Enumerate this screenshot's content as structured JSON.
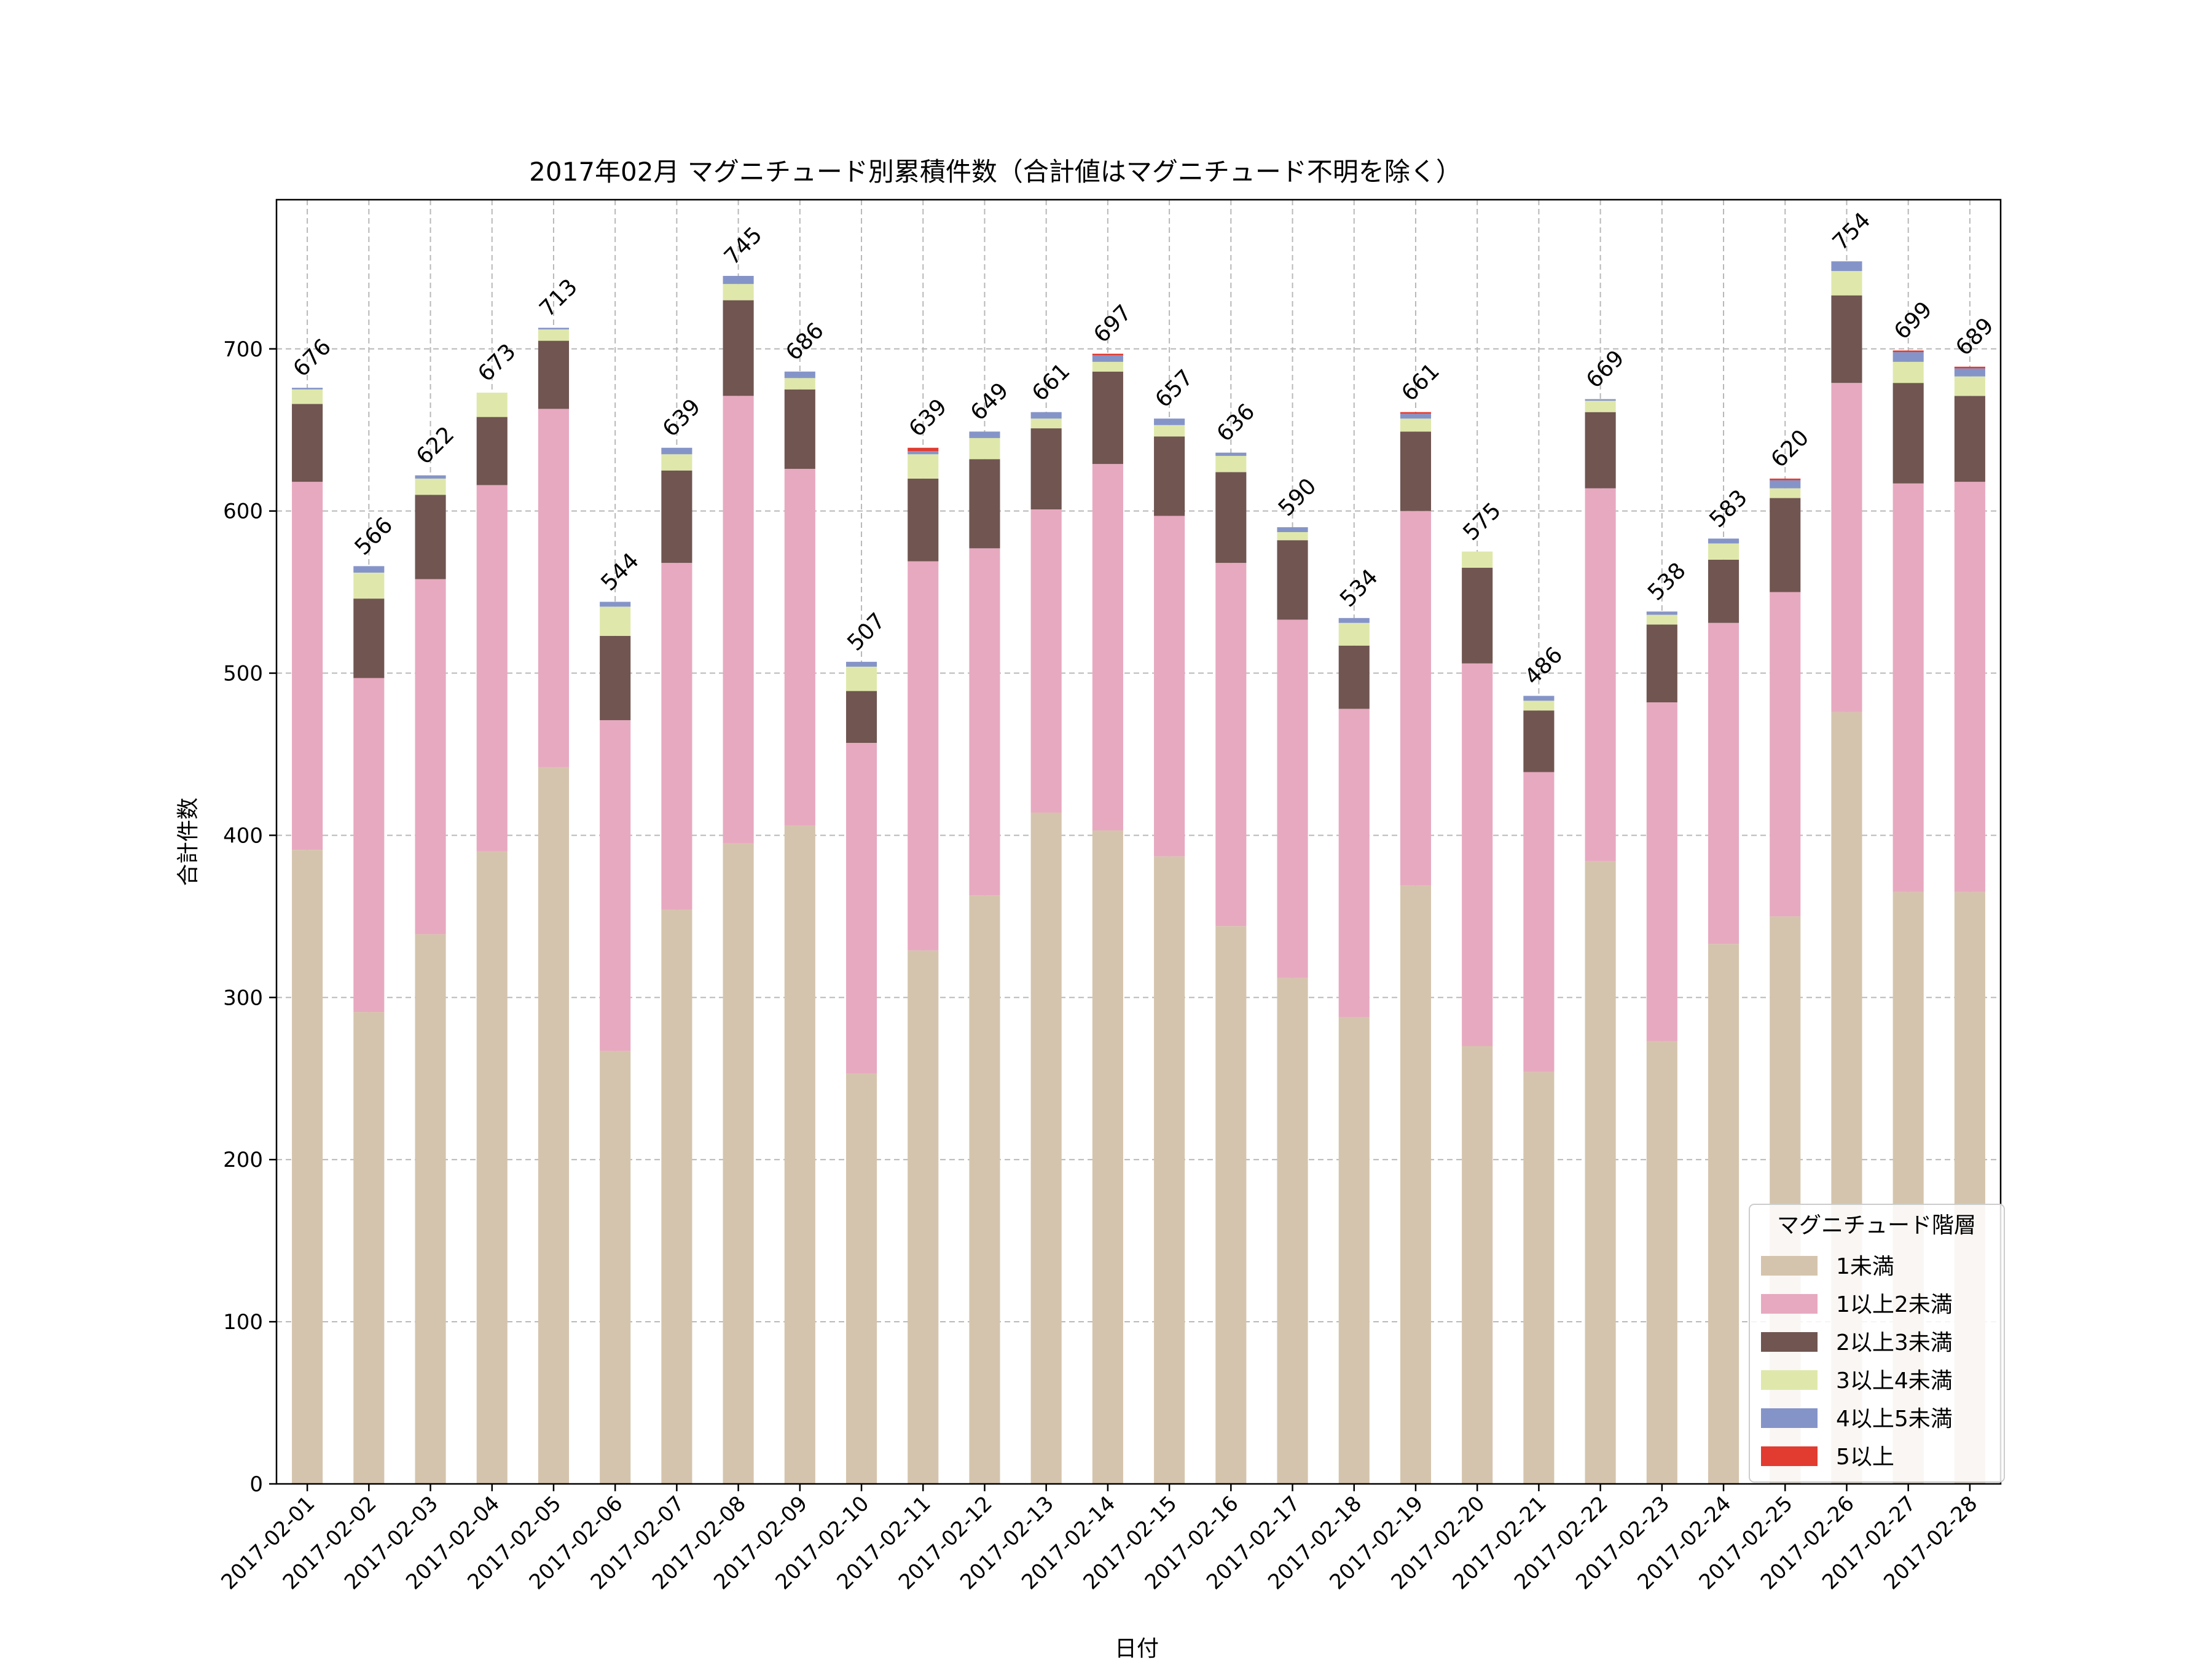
{
  "chart_data": {
    "type": "bar",
    "stacked": true,
    "title": "2017年02月 マグニチュード別累積件数（合計値はマグニチュード不明を除く）",
    "xlabel": "日付",
    "ylabel": "合計件数",
    "ylim": [
      0,
      792
    ],
    "yticks": [
      0,
      100,
      200,
      300,
      400,
      500,
      600,
      700
    ],
    "grid": true,
    "legend_title": "マグニチュード階層",
    "legend_position": "lower-right",
    "categories": [
      "2017-02-01",
      "2017-02-02",
      "2017-02-03",
      "2017-02-04",
      "2017-02-05",
      "2017-02-06",
      "2017-02-07",
      "2017-02-08",
      "2017-02-09",
      "2017-02-10",
      "2017-02-11",
      "2017-02-12",
      "2017-02-13",
      "2017-02-14",
      "2017-02-15",
      "2017-02-16",
      "2017-02-17",
      "2017-02-18",
      "2017-02-19",
      "2017-02-20",
      "2017-02-21",
      "2017-02-22",
      "2017-02-23",
      "2017-02-24",
      "2017-02-25",
      "2017-02-26",
      "2017-02-27",
      "2017-02-28"
    ],
    "series": [
      {
        "name": "1未満",
        "color": "#d5c4ad",
        "values": [
          391,
          291,
          339,
          390,
          442,
          267,
          354,
          395,
          406,
          253,
          329,
          363,
          414,
          403,
          387,
          344,
          312,
          288,
          369,
          270,
          254,
          384,
          273,
          333,
          350,
          476,
          365,
          365
        ]
      },
      {
        "name": "1以上2未満",
        "color": "#e7a9c0",
        "values": [
          227,
          206,
          219,
          226,
          221,
          204,
          214,
          276,
          220,
          204,
          240,
          214,
          187,
          226,
          210,
          224,
          221,
          190,
          231,
          236,
          185,
          230,
          209,
          198,
          200,
          203,
          252,
          253
        ]
      },
      {
        "name": "2以上3未満",
        "color": "#705551",
        "values": [
          48,
          49,
          52,
          42,
          42,
          52,
          57,
          59,
          49,
          32,
          51,
          55,
          50,
          57,
          49,
          56,
          49,
          39,
          49,
          59,
          38,
          47,
          48,
          39,
          58,
          54,
          62,
          53
        ]
      },
      {
        "name": "3以上4未満",
        "color": "#dfe8aa",
        "values": [
          9,
          16,
          10,
          15,
          7,
          18,
          10,
          10,
          7,
          15,
          15,
          13,
          6,
          6,
          7,
          10,
          5,
          14,
          8,
          10,
          6,
          7,
          6,
          10,
          6,
          15,
          13,
          12
        ]
      },
      {
        "name": "4以上5未満",
        "color": "#8594c8",
        "values": [
          1,
          4,
          2,
          0,
          1,
          3,
          4,
          5,
          4,
          3,
          2,
          4,
          4,
          4,
          4,
          2,
          3,
          3,
          3,
          0,
          3,
          1,
          2,
          3,
          5,
          6,
          6,
          5
        ]
      },
      {
        "name": "5以上",
        "color": "#e23b30",
        "values": [
          0,
          0,
          0,
          0,
          0,
          0,
          0,
          0,
          0,
          0,
          2,
          0,
          0,
          1,
          0,
          0,
          0,
          0,
          1,
          0,
          0,
          0,
          0,
          0,
          1,
          0,
          1,
          1
        ]
      }
    ],
    "totals": [
      676,
      566,
      622,
      673,
      713,
      544,
      639,
      745,
      686,
      507,
      639,
      649,
      661,
      697,
      657,
      636,
      590,
      534,
      661,
      575,
      486,
      669,
      538,
      583,
      620,
      754,
      699,
      689
    ]
  }
}
